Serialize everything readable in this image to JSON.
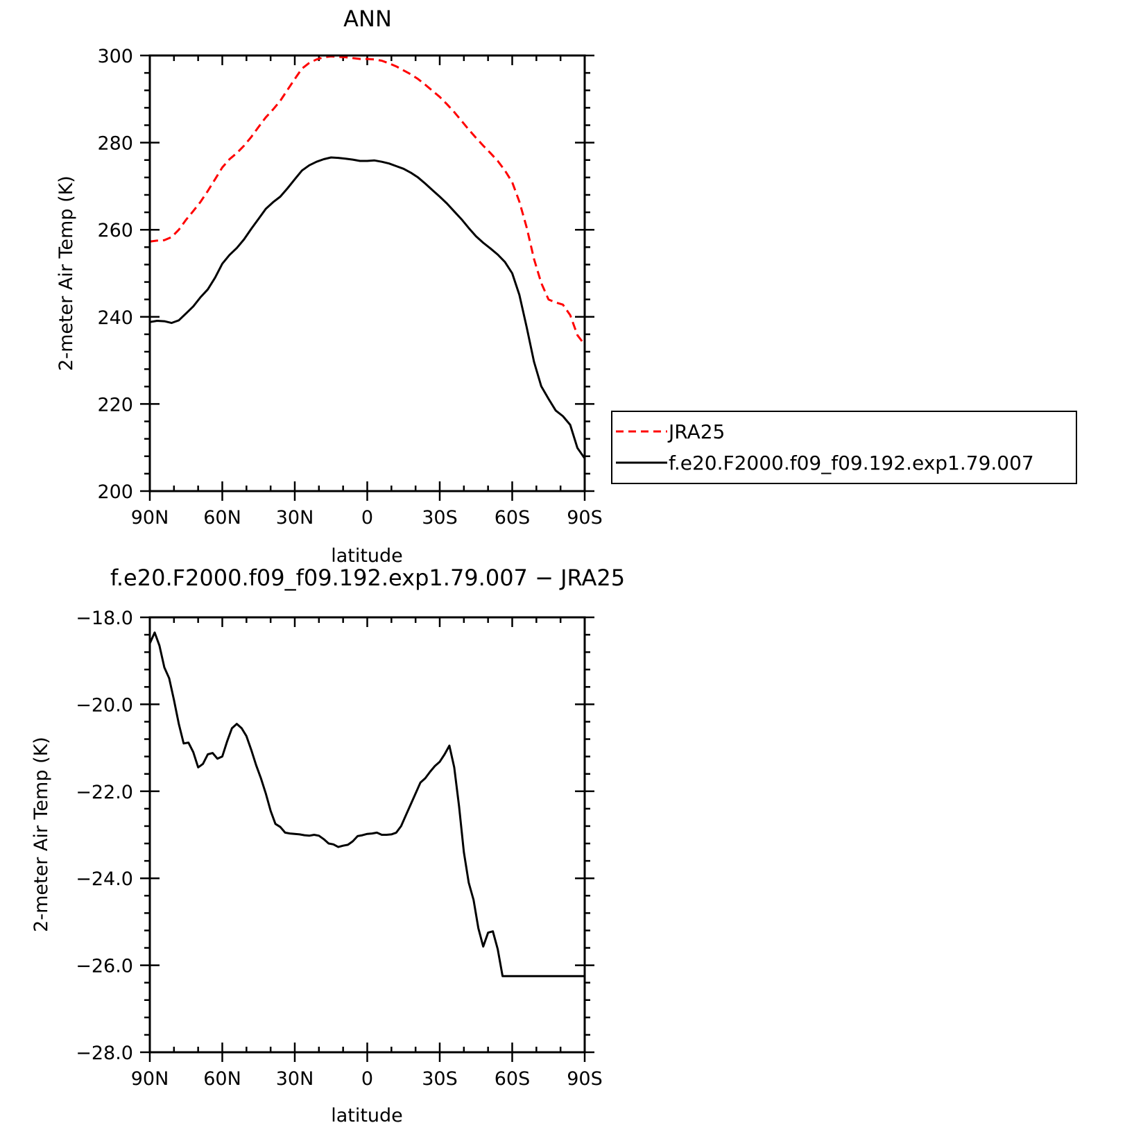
{
  "chart_data": [
    {
      "type": "line",
      "title": "ANN",
      "xlabel": "latitude",
      "ylabel": "2-meter Air Temp (K)",
      "xlim": [
        90,
        -90
      ],
      "ylim": [
        200,
        300
      ],
      "x_ticks": [
        90,
        60,
        30,
        0,
        -30,
        -60,
        -90
      ],
      "x_tick_labels": [
        "90N",
        "60N",
        "30N",
        "0",
        "30S",
        "60S",
        "90S"
      ],
      "y_ticks": [
        200,
        220,
        240,
        260,
        280,
        300
      ],
      "y_tick_labels": [
        "200",
        "220",
        "240",
        "260",
        "280",
        "300"
      ],
      "grid": false,
      "legend": {
        "placement": "right",
        "entries": [
          "JRA25",
          "f.e20.F2000.f09_f09.192.exp1.79.007"
        ]
      },
      "series": [
        {
          "name": "JRA25",
          "color": "#ff0000",
          "dash": "dashed",
          "x": [
            90,
            87,
            84,
            81,
            78,
            75,
            72,
            69,
            66,
            63,
            60,
            57,
            54,
            51,
            48,
            45,
            42,
            39,
            36,
            33,
            30,
            27,
            24,
            21,
            18,
            15,
            12,
            9,
            6,
            3,
            0,
            -3,
            -6,
            -9,
            -12,
            -15,
            -18,
            -21,
            -24,
            -27,
            -30,
            -33,
            -36,
            -39,
            -42,
            -45,
            -48,
            -51,
            -54,
            -57,
            -60,
            -63,
            -66,
            -69,
            -72,
            -75,
            -78,
            -81,
            -84,
            -87,
            -90
          ],
          "y": [
            257.3,
            257.5,
            257.6,
            258.3,
            260.0,
            262.3,
            264.3,
            266.4,
            268.9,
            271.6,
            274.3,
            276.2,
            277.6,
            279.3,
            281.3,
            283.6,
            285.8,
            287.6,
            289.6,
            292.1,
            294.6,
            297.0,
            298.3,
            299.1,
            299.6,
            299.8,
            299.7,
            299.6,
            299.4,
            299.2,
            299.2,
            299.1,
            298.8,
            298.2,
            297.5,
            296.6,
            295.7,
            294.6,
            293.3,
            291.9,
            290.5,
            288.8,
            287.0,
            285.0,
            283.0,
            281.1,
            279.3,
            277.6,
            275.8,
            273.6,
            270.9,
            266.4,
            260.5,
            253.3,
            247.8,
            244.0,
            243.3,
            242.8,
            240.4,
            235.8,
            233.6
          ]
        },
        {
          "name": "f.e20.F2000.f09_f09.192.exp1.79.007",
          "color": "#000000",
          "dash": "solid",
          "x": [
            90,
            87,
            84,
            81,
            78,
            75,
            72,
            69,
            66,
            63,
            60,
            57,
            54,
            51,
            48,
            45,
            42,
            39,
            36,
            33,
            30,
            27,
            24,
            21,
            18,
            15,
            12,
            9,
            6,
            3,
            0,
            -3,
            -6,
            -9,
            -12,
            -15,
            -18,
            -21,
            -24,
            -27,
            -30,
            -33,
            -36,
            -39,
            -42,
            -45,
            -48,
            -51,
            -54,
            -57,
            -60,
            -63,
            -66,
            -69,
            -72,
            -75,
            -78,
            -81,
            -84,
            -87,
            -90
          ],
          "y": [
            238.8,
            239.1,
            239.0,
            238.6,
            239.2,
            240.8,
            242.4,
            244.5,
            246.3,
            249.0,
            252.2,
            254.2,
            255.8,
            257.8,
            260.2,
            262.5,
            264.8,
            266.3,
            267.6,
            269.5,
            271.6,
            273.6,
            274.8,
            275.6,
            276.2,
            276.6,
            276.5,
            276.3,
            276.1,
            275.8,
            275.8,
            275.9,
            275.6,
            275.2,
            274.6,
            274.0,
            273.1,
            272.0,
            270.6,
            269.1,
            267.6,
            266.0,
            264.2,
            262.4,
            260.4,
            258.5,
            257.0,
            255.7,
            254.3,
            252.6,
            250.0,
            245.0,
            237.6,
            229.7,
            224.1,
            221.2,
            218.5,
            217.2,
            215.2,
            209.9,
            207.5
          ]
        }
      ]
    },
    {
      "type": "line",
      "title": "f.e20.F2000.f09_f09.192.exp1.79.007 − JRA25",
      "xlabel": "latitude",
      "ylabel": "2-meter Air Temp (K)",
      "xlim": [
        90,
        -90
      ],
      "ylim": [
        -28.0,
        -18.0
      ],
      "x_ticks": [
        90,
        60,
        30,
        0,
        -30,
        -60,
        -90
      ],
      "x_tick_labels": [
        "90N",
        "60N",
        "30N",
        "0",
        "30S",
        "60S",
        "90S"
      ],
      "y_ticks": [
        -28,
        -26,
        -24,
        -22,
        -20,
        -18
      ],
      "y_tick_labels": [
        "−28.0",
        "−26.0",
        "−24.0",
        "−22.0",
        "−20.0",
        "−18.0"
      ],
      "grid": false,
      "series": [
        {
          "color": "#000000",
          "dash": "solid",
          "x": [
            90,
            88,
            86,
            84,
            82,
            80,
            78,
            76,
            74,
            72,
            70,
            68,
            66,
            64,
            62,
            60,
            58,
            56,
            54,
            52,
            50,
            48,
            46,
            44,
            42,
            40,
            38,
            36,
            34,
            32,
            30,
            28,
            26,
            24,
            22,
            20,
            18,
            16,
            14,
            12,
            10,
            8,
            6,
            4,
            2,
            0,
            -2,
            -4,
            -6,
            -8,
            -10,
            -12,
            -14,
            -16,
            -18,
            -20,
            -22,
            -24,
            -26,
            -28,
            -30,
            -32,
            -34,
            -36,
            -38,
            -40,
            -42,
            -44,
            -46,
            -48,
            -50,
            -52,
            -54,
            -56,
            -58,
            -60,
            -62,
            -64,
            -66,
            -68,
            -70,
            -72,
            -74,
            -76,
            -78,
            -80,
            -82,
            -84,
            -86,
            -88,
            -90
          ],
          "y": [
            -18.6,
            -18.35,
            -18.65,
            -19.15,
            -19.4,
            -19.9,
            -20.45,
            -20.9,
            -20.88,
            -21.1,
            -21.45,
            -21.37,
            -21.15,
            -21.12,
            -21.25,
            -21.2,
            -20.85,
            -20.55,
            -20.45,
            -20.55,
            -20.73,
            -21.05,
            -21.4,
            -21.7,
            -22.05,
            -22.45,
            -22.75,
            -22.82,
            -22.95,
            -22.97,
            -22.98,
            -22.99,
            -23.01,
            -23.02,
            -23.0,
            -23.02,
            -23.1,
            -23.2,
            -23.22,
            -23.28,
            -23.25,
            -23.23,
            -23.15,
            -23.03,
            -23.01,
            -22.98,
            -22.97,
            -22.95,
            -23.0,
            -23.0,
            -22.99,
            -22.95,
            -22.8,
            -22.55,
            -22.3,
            -22.05,
            -21.8,
            -21.7,
            -21.55,
            -21.42,
            -21.32,
            -21.15,
            -20.95,
            -21.45,
            -22.35,
            -23.4,
            -24.1,
            -24.5,
            -25.15,
            -25.57,
            -25.25,
            -25.22,
            -25.63,
            -26.25,
            -26.25,
            -26.25,
            -26.25,
            -26.25,
            -26.25,
            -26.25,
            -26.25,
            -26.25,
            -26.25,
            -26.25,
            -26.25,
            -26.25,
            -26.25,
            -26.25,
            -26.25,
            -26.25,
            -26.25
          ]
        }
      ]
    }
  ]
}
